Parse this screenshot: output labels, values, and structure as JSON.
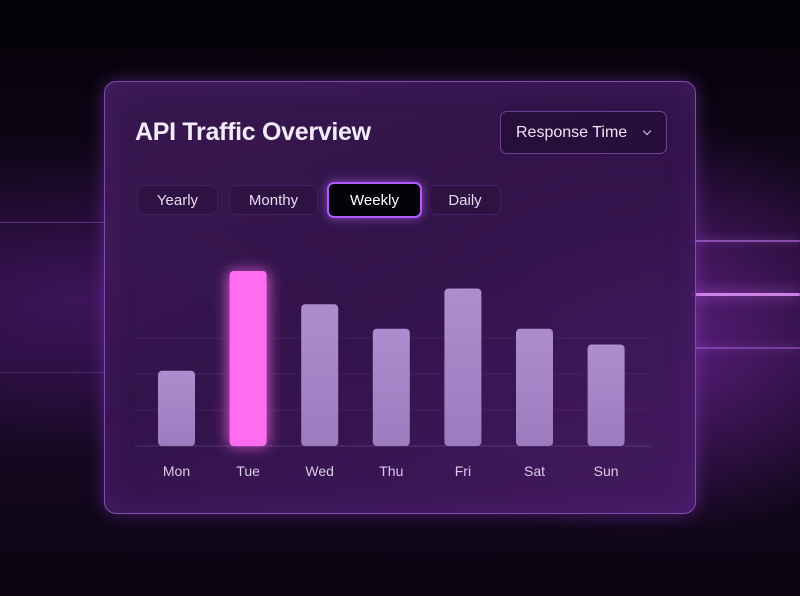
{
  "title": "API Traffic Overview",
  "dropdown": {
    "selected": "Response Time",
    "icon": "chevron-down-icon"
  },
  "tabs": [
    {
      "label": "Yearly",
      "active": false
    },
    {
      "label": "Monthy",
      "active": false
    },
    {
      "label": "Weekly",
      "active": true
    },
    {
      "label": "Daily",
      "active": false
    }
  ],
  "colors": {
    "bar": "#a585c6",
    "highlight_bar": "#ff6cf0",
    "accent": "#b25bff"
  },
  "chart_data": {
    "type": "bar",
    "categories": [
      "Mon",
      "Tue",
      "Wed",
      "Thu",
      "Fri",
      "Sat",
      "Sun"
    ],
    "values": [
      43,
      100,
      81,
      67,
      90,
      67,
      58
    ],
    "highlight_category": "Tue",
    "ylim": [
      0,
      100
    ],
    "grid": true,
    "legend": "none"
  }
}
